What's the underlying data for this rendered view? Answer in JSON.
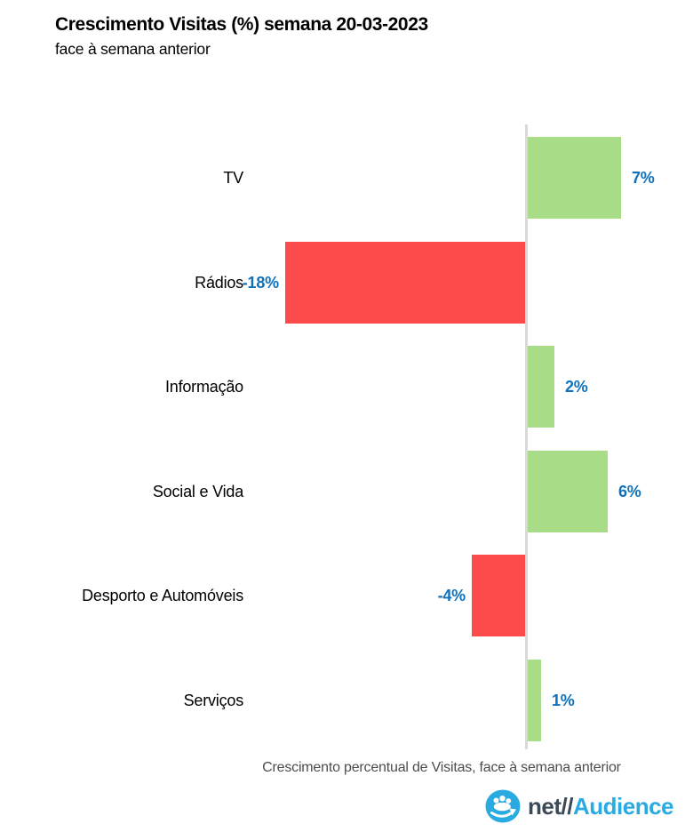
{
  "header": {
    "title": "Crescimento Visitas (%) semana 20-03-2023",
    "subtitle": "face à semana anterior"
  },
  "chart_data": {
    "type": "bar",
    "orientation": "horizontal",
    "title": "Crescimento Visitas (%) semana 20-03-2023",
    "subtitle": "face à semana anterior",
    "xlabel": "Crescimento percentual de Visitas, face à semana anterior",
    "categories": [
      "TV",
      "Rádios",
      "Informação",
      "Social e Vida",
      "Desporto e Automóveis",
      "Serviços"
    ],
    "values": [
      7,
      -18,
      2,
      6,
      -4,
      1
    ],
    "value_labels": [
      "7%",
      "-18%",
      "2%",
      "6%",
      "-4%",
      "1%"
    ],
    "xlim": [
      -20,
      10
    ],
    "grid": false,
    "legend": false,
    "colors": {
      "positive_bar": "#a9dc86",
      "negative_bar": "#fc4b4b",
      "value_label": "#0e71bd",
      "category_label": "#000000",
      "zero_axis_line": "#d9d9d9",
      "axis_label": "#4d4d4d"
    }
  },
  "footer": {
    "logo": {
      "icon": "netaudience-people-arrow-icon",
      "prefix": "net//",
      "suffix": "Audience",
      "prefix_color": "#3c4a57",
      "suffix_color": "#29abe2",
      "icon_color": "#29abe2"
    }
  }
}
